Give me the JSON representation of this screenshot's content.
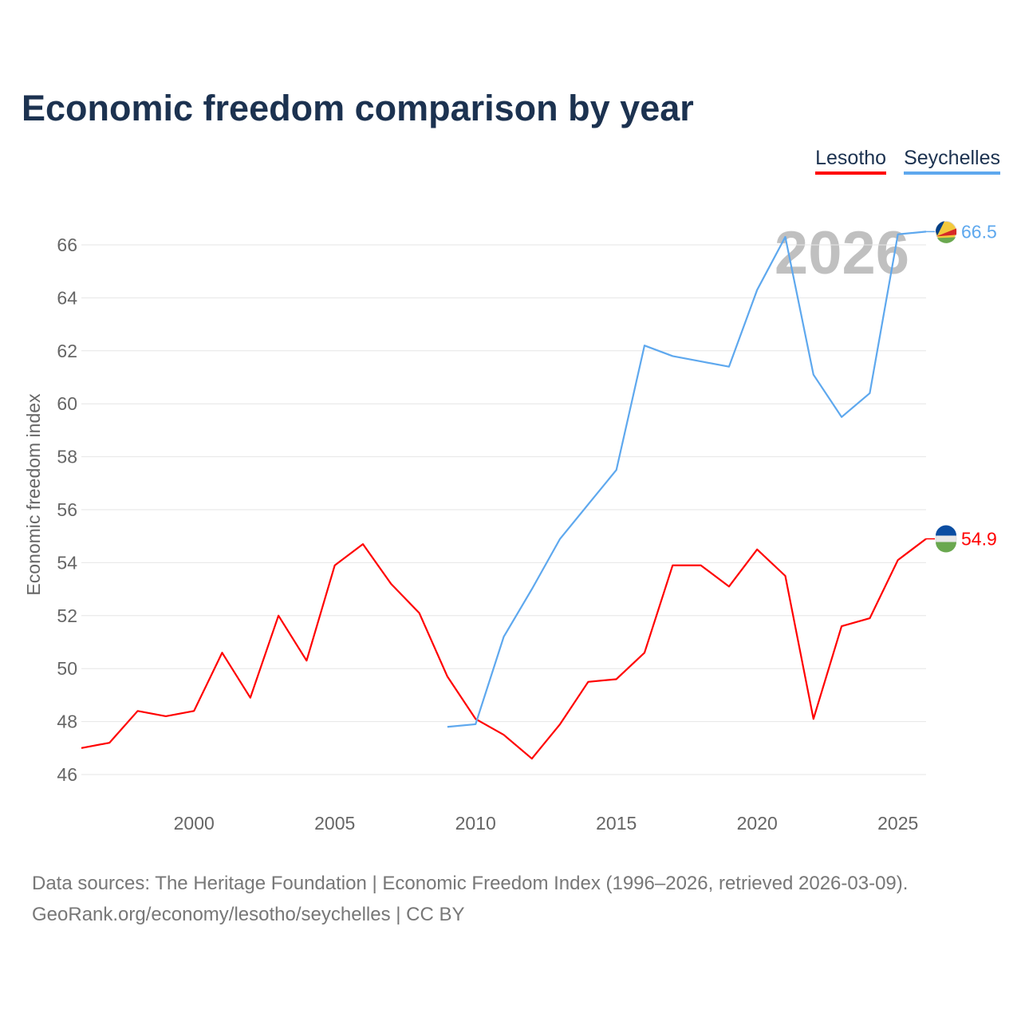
{
  "title": "Economic freedom comparison by year",
  "legend": [
    {
      "name": "Lesotho",
      "color": "#ff0000"
    },
    {
      "name": "Seychelles",
      "color": "#5ea8ee"
    }
  ],
  "watermark_year": "2026",
  "source_lines": [
    "Data sources: The Heritage Foundation | Economic Freedom Index (1996–2026, retrieved 2026-03-09).",
    "GeoRank.org/economy/lesotho/seychelles | CC BY"
  ],
  "chart_data": {
    "type": "line",
    "title": "Economic freedom comparison by year",
    "xlabel": "",
    "ylabel": "Economic freedom index",
    "xlim": [
      1996,
      2026
    ],
    "ylim": [
      45,
      67.5
    ],
    "xticks": [
      2000,
      2005,
      2010,
      2015,
      2020,
      2025
    ],
    "yticks": [
      46,
      48,
      50,
      52,
      54,
      56,
      58,
      60,
      62,
      64,
      66
    ],
    "grid": true,
    "legend_position": "top-right",
    "series": [
      {
        "name": "Lesotho",
        "color": "#ff0000",
        "end_label": "54.9",
        "x": [
          1996,
          1997,
          1998,
          1999,
          2000,
          2001,
          2002,
          2003,
          2004,
          2005,
          2006,
          2007,
          2008,
          2009,
          2010,
          2011,
          2012,
          2013,
          2014,
          2015,
          2016,
          2017,
          2018,
          2019,
          2020,
          2021,
          2022,
          2023,
          2024,
          2025,
          2026
        ],
        "y": [
          47.0,
          47.2,
          48.4,
          48.2,
          48.4,
          50.6,
          48.9,
          52.0,
          50.3,
          53.9,
          54.7,
          53.2,
          52.1,
          49.7,
          48.1,
          47.5,
          46.6,
          47.9,
          49.5,
          49.6,
          50.6,
          53.9,
          53.9,
          53.1,
          54.5,
          53.5,
          48.1,
          51.6,
          51.9,
          54.1,
          54.9
        ]
      },
      {
        "name": "Seychelles",
        "color": "#5ea8ee",
        "end_label": "66.5",
        "x": [
          2009,
          2010,
          2011,
          2012,
          2013,
          2014,
          2015,
          2016,
          2017,
          2018,
          2019,
          2020,
          2021,
          2022,
          2023,
          2024,
          2025,
          2026
        ],
        "y": [
          47.8,
          47.9,
          51.2,
          53.0,
          54.9,
          56.2,
          57.5,
          62.2,
          61.8,
          61.6,
          61.4,
          64.3,
          66.3,
          61.1,
          59.5,
          60.4,
          66.4,
          66.5
        ]
      }
    ]
  }
}
